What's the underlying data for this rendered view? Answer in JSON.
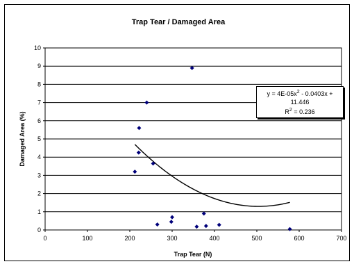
{
  "chart_data": {
    "type": "scatter",
    "title": "Trap Tear  / Damaged Area",
    "xlabel": "Trap Tear  (N)",
    "ylabel": "Damaged Area (%)",
    "xlim": [
      0,
      700
    ],
    "ylim": [
      0,
      10
    ],
    "xticks": [
      0,
      100,
      200,
      300,
      400,
      500,
      600,
      700
    ],
    "yticks": [
      0,
      1,
      2,
      3,
      4,
      5,
      6,
      7,
      8,
      9,
      10
    ],
    "grid": "horizontal",
    "points": [
      {
        "x": 212,
        "y": 3.2
      },
      {
        "x": 221,
        "y": 4.25
      },
      {
        "x": 222,
        "y": 5.6
      },
      {
        "x": 240,
        "y": 7.0
      },
      {
        "x": 255,
        "y": 3.65
      },
      {
        "x": 265,
        "y": 0.3
      },
      {
        "x": 298,
        "y": 0.45
      },
      {
        "x": 300,
        "y": 0.7
      },
      {
        "x": 347,
        "y": 8.9
      },
      {
        "x": 358,
        "y": 0.18
      },
      {
        "x": 375,
        "y": 0.9
      },
      {
        "x": 380,
        "y": 0.22
      },
      {
        "x": 411,
        "y": 0.28
      },
      {
        "x": 578,
        "y": 0.05
      }
    ],
    "trendline": {
      "type": "polynomial",
      "coefficients": [
        4e-05,
        -0.0403,
        11.446
      ],
      "x_range": [
        212,
        578
      ],
      "equation_prefix": "y = 4E-05x",
      "equation_suffix": " - 0.0403x + 11.446",
      "r2_prefix": "R",
      "r2_suffix": " = 0.236",
      "superscript": "2"
    },
    "colors": {
      "marker": "#00007a",
      "line": "#000000",
      "grid": "#000000"
    }
  }
}
